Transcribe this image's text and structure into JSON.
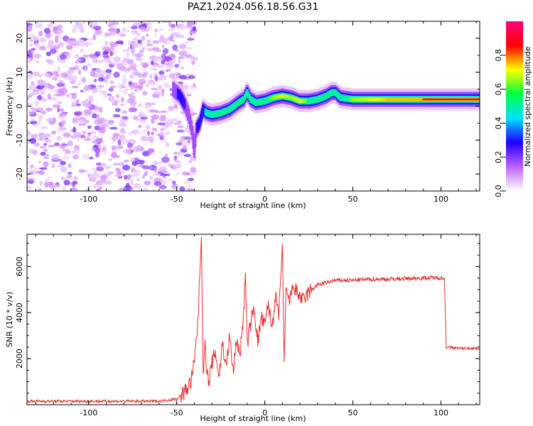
{
  "title": "PAZ1.2024.056.18.56.G31",
  "chart_data": [
    {
      "type": "heatmap",
      "xlabel": "Height of straight line (km)",
      "ylabel": "Frequency (Hz)",
      "xlim": [
        -135,
        122
      ],
      "ylim": [
        -25,
        25
      ],
      "xticks": [
        -100,
        -50,
        0,
        50,
        100
      ],
      "yticks": [
        -20,
        -10,
        0,
        10,
        20
      ],
      "colorbar": {
        "label": "Normalized spectral amplitude",
        "range": [
          0,
          1
        ],
        "ticks": [
          0.0,
          0.2,
          0.4,
          0.6,
          0.8
        ],
        "colormap": [
          "#ffffff",
          "#c060ff",
          "#2000ff",
          "#00e0ff",
          "#00ff40",
          "#ffff00",
          "#ff0000",
          "#ff0080"
        ]
      },
      "noise_region": {
        "x": [
          -135,
          -52
        ],
        "y": [
          -25,
          25
        ],
        "amplitude": 0.15
      },
      "ridge": {
        "x": [
          -52,
          -48,
          -45,
          -43,
          -41,
          -40,
          -39,
          -37,
          -35,
          -33,
          -30,
          -25,
          -20,
          -15,
          -12,
          -10,
          -8,
          -5,
          0,
          5,
          10,
          15,
          20,
          25,
          30,
          35,
          38,
          40,
          43,
          50,
          60,
          70,
          80,
          90,
          100,
          110,
          122
        ],
        "y": [
          5,
          3,
          0,
          -3,
          -8,
          -13,
          -7,
          -5,
          -1,
          -2,
          -2.5,
          -2,
          -1,
          1,
          2,
          4,
          2,
          1,
          1.5,
          2.5,
          3,
          2.5,
          1.5,
          1.5,
          2,
          3,
          4,
          4,
          2.5,
          2,
          2,
          2,
          2,
          2,
          2,
          2,
          2
        ],
        "amplitude": [
          0.2,
          0.3,
          0.25,
          0.2,
          0.2,
          0.2,
          0.25,
          0.3,
          0.4,
          0.45,
          0.5,
          0.6,
          0.6,
          0.55,
          0.5,
          0.6,
          0.5,
          0.55,
          0.6,
          0.65,
          0.7,
          0.65,
          0.7,
          0.6,
          0.55,
          0.55,
          0.6,
          0.55,
          0.6,
          0.65,
          0.7,
          0.75,
          0.8,
          0.85,
          0.9,
          0.9,
          0.9
        ]
      }
    },
    {
      "type": "line",
      "xlabel": "Height of straight line (km)",
      "ylabel": "SNR (10 * v/v)",
      "xlim": [
        -135,
        122
      ],
      "ylim": [
        0,
        7400
      ],
      "xticks": [
        -100,
        -50,
        0,
        50,
        100
      ],
      "yticks": [
        2000,
        4000,
        6000
      ],
      "color": "#e83030",
      "series": [
        {
          "x": [
            -135,
            -60,
            -50,
            -45,
            -42,
            -40,
            -38,
            -36,
            -35,
            -34,
            -32,
            -30,
            -28,
            -26,
            -24,
            -22,
            -20,
            -18,
            -16,
            -14,
            -12,
            -11,
            -10,
            -8,
            -6,
            -4,
            -2,
            0,
            2,
            4,
            6,
            8,
            10,
            11,
            12,
            14,
            16,
            18,
            20,
            22,
            25,
            30,
            35,
            40,
            50,
            60,
            70,
            80,
            90,
            100,
            102,
            103,
            110,
            122
          ],
          "y": [
            150,
            150,
            250,
            600,
            1000,
            1800,
            3600,
            7300,
            1500,
            2500,
            900,
            1800,
            2300,
            1200,
            2700,
            1600,
            3000,
            1400,
            2800,
            2200,
            4000,
            5700,
            2600,
            3600,
            4200,
            2700,
            3800,
            3400,
            4400,
            3300,
            4700,
            3900,
            7000,
            1800,
            4800,
            4500,
            5100,
            4900,
            4700,
            4500,
            4900,
            5200,
            5300,
            5400,
            5400,
            5450,
            5450,
            5480,
            5500,
            5520,
            5450,
            2500,
            2450,
            2450
          ]
        }
      ]
    }
  ]
}
